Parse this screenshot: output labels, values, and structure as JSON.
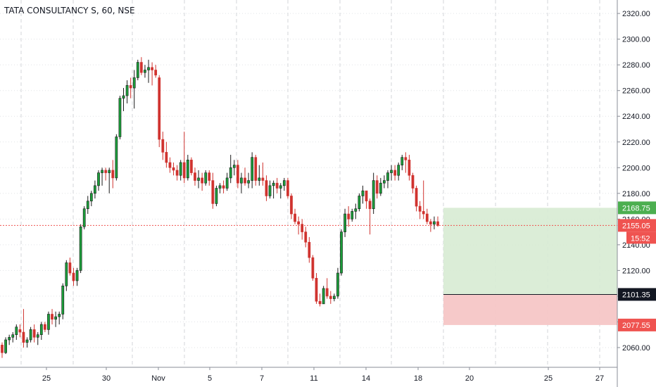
{
  "chart_data": {
    "type": "candlestick",
    "title": "TATA CONSULTANCY S, 60, NSE",
    "y_ticks": [
      2060,
      2080,
      2100,
      2120,
      2140,
      2160,
      2180,
      2200,
      2220,
      2240,
      2260,
      2280,
      2300,
      2320
    ],
    "x_ticks": [
      "25",
      "30",
      "Nov",
      "5",
      "7",
      "11",
      "14",
      "18",
      "20",
      "25",
      "27"
    ],
    "ylim": [
      2043,
      2325
    ],
    "grid": true,
    "candles": [
      [
        2062,
        2064,
        2052,
        2056
      ],
      [
        2056,
        2068,
        2055,
        2066
      ],
      [
        2066,
        2070,
        2062,
        2068
      ],
      [
        2068,
        2072,
        2064,
        2070
      ],
      [
        2070,
        2078,
        2066,
        2076
      ],
      [
        2074,
        2078,
        2068,
        2072
      ],
      [
        2072,
        2090,
        2060,
        2064
      ],
      [
        2064,
        2068,
        2060,
        2066
      ],
      [
        2066,
        2076,
        2064,
        2074
      ],
      [
        2074,
        2078,
        2064,
        2068
      ],
      [
        2068,
        2072,
        2062,
        2070
      ],
      [
        2070,
        2080,
        2066,
        2078
      ],
      [
        2078,
        2080,
        2072,
        2074
      ],
      [
        2074,
        2088,
        2070,
        2086
      ],
      [
        2086,
        2090,
        2078,
        2082
      ],
      [
        2082,
        2088,
        2076,
        2084
      ],
      [
        2084,
        2088,
        2078,
        2086
      ],
      [
        2086,
        2110,
        2082,
        2108
      ],
      [
        2108,
        2128,
        2104,
        2126
      ],
      [
        2126,
        2130,
        2116,
        2118
      ],
      [
        2118,
        2122,
        2108,
        2112
      ],
      [
        2112,
        2122,
        2108,
        2120
      ],
      [
        2120,
        2156,
        2118,
        2154
      ],
      [
        2154,
        2170,
        2152,
        2168
      ],
      [
        2168,
        2178,
        2164,
        2174
      ],
      [
        2174,
        2182,
        2170,
        2180
      ],
      [
        2180,
        2190,
        2176,
        2186
      ],
      [
        2186,
        2198,
        2182,
        2196
      ],
      [
        2196,
        2200,
        2186,
        2198
      ],
      [
        2198,
        2200,
        2190,
        2196
      ],
      [
        2196,
        2200,
        2180,
        2198
      ],
      [
        2198,
        2206,
        2184,
        2192
      ],
      [
        2192,
        2226,
        2190,
        2224
      ],
      [
        2224,
        2256,
        2222,
        2254
      ],
      [
        2254,
        2262,
        2244,
        2256
      ],
      [
        2256,
        2268,
        2250,
        2264
      ],
      [
        2264,
        2270,
        2254,
        2262
      ],
      [
        2262,
        2276,
        2246,
        2270
      ],
      [
        2270,
        2284,
        2268,
        2282
      ],
      [
        2282,
        2286,
        2272,
        2274
      ],
      [
        2274,
        2280,
        2270,
        2276
      ],
      [
        2276,
        2284,
        2266,
        2278
      ],
      [
        2278,
        2282,
        2264,
        2276
      ],
      [
        2276,
        2280,
        2270,
        2272
      ],
      [
        2270,
        2272,
        2216,
        2222
      ],
      [
        2222,
        2228,
        2206,
        2212
      ],
      [
        2212,
        2220,
        2200,
        2204
      ],
      [
        2204,
        2208,
        2196,
        2200
      ],
      [
        2200,
        2204,
        2194,
        2198
      ],
      [
        2198,
        2202,
        2190,
        2194
      ],
      [
        2194,
        2206,
        2190,
        2204
      ],
      [
        2204,
        2228,
        2188,
        2192
      ],
      [
        2192,
        2210,
        2190,
        2206
      ],
      [
        2206,
        2208,
        2194,
        2196
      ],
      [
        2196,
        2200,
        2186,
        2190
      ],
      [
        2190,
        2198,
        2184,
        2192
      ],
      [
        2192,
        2196,
        2182,
        2188
      ],
      [
        2188,
        2198,
        2186,
        2196
      ],
      [
        2196,
        2198,
        2186,
        2190
      ],
      [
        2190,
        2196,
        2168,
        2172
      ],
      [
        2172,
        2186,
        2170,
        2184
      ],
      [
        2184,
        2188,
        2180,
        2186
      ],
      [
        2186,
        2190,
        2180,
        2184
      ],
      [
        2184,
        2196,
        2182,
        2192
      ],
      [
        2192,
        2210,
        2188,
        2200
      ],
      [
        2200,
        2206,
        2194,
        2202
      ],
      [
        2202,
        2206,
        2184,
        2188
      ],
      [
        2188,
        2196,
        2180,
        2192
      ],
      [
        2192,
        2200,
        2186,
        2188
      ],
      [
        2188,
        2196,
        2184,
        2190
      ],
      [
        2190,
        2212,
        2184,
        2208
      ],
      [
        2208,
        2210,
        2186,
        2190
      ],
      [
        2190,
        2202,
        2186,
        2192
      ],
      [
        2192,
        2204,
        2186,
        2190
      ],
      [
        2190,
        2194,
        2174,
        2178
      ],
      [
        2178,
        2190,
        2176,
        2186
      ],
      [
        2186,
        2190,
        2176,
        2188
      ],
      [
        2188,
        2192,
        2180,
        2184
      ],
      [
        2184,
        2188,
        2176,
        2186
      ],
      [
        2186,
        2192,
        2182,
        2190
      ],
      [
        2190,
        2192,
        2176,
        2178
      ],
      [
        2178,
        2180,
        2160,
        2164
      ],
      [
        2164,
        2168,
        2156,
        2158
      ],
      [
        2158,
        2162,
        2148,
        2156
      ],
      [
        2156,
        2160,
        2144,
        2150
      ],
      [
        2150,
        2154,
        2138,
        2142
      ],
      [
        2142,
        2146,
        2126,
        2130
      ],
      [
        2130,
        2132,
        2112,
        2114
      ],
      [
        2114,
        2118,
        2094,
        2096
      ],
      [
        2096,
        2102,
        2092,
        2094
      ],
      [
        2094,
        2108,
        2094,
        2106
      ],
      [
        2106,
        2114,
        2098,
        2100
      ],
      [
        2100,
        2104,
        2094,
        2098
      ],
      [
        2098,
        2102,
        2096,
        2100
      ],
      [
        2100,
        2122,
        2098,
        2118
      ],
      [
        2118,
        2152,
        2116,
        2150
      ],
      [
        2150,
        2168,
        2146,
        2164
      ],
      [
        2164,
        2170,
        2154,
        2160
      ],
      [
        2160,
        2168,
        2158,
        2166
      ],
      [
        2166,
        2172,
        2160,
        2168
      ],
      [
        2168,
        2180,
        2166,
        2178
      ],
      [
        2178,
        2186,
        2172,
        2182
      ],
      [
        2182,
        2182,
        2168,
        2174
      ],
      [
        2174,
        2176,
        2148,
        2168
      ],
      [
        2168,
        2196,
        2164,
        2190
      ],
      [
        2190,
        2194,
        2176,
        2180
      ],
      [
        2180,
        2192,
        2178,
        2188
      ],
      [
        2188,
        2194,
        2184,
        2190
      ],
      [
        2190,
        2198,
        2184,
        2196
      ],
      [
        2196,
        2202,
        2190,
        2198
      ],
      [
        2198,
        2202,
        2190,
        2194
      ],
      [
        2194,
        2204,
        2190,
        2202
      ],
      [
        2202,
        2210,
        2198,
        2208
      ],
      [
        2208,
        2212,
        2196,
        2206
      ],
      [
        2206,
        2210,
        2190,
        2194
      ],
      [
        2194,
        2196,
        2180,
        2184
      ],
      [
        2184,
        2186,
        2166,
        2170
      ],
      [
        2170,
        2174,
        2160,
        2166
      ],
      [
        2166,
        2190,
        2160,
        2164
      ],
      [
        2164,
        2168,
        2156,
        2158
      ],
      [
        2158,
        2160,
        2150,
        2156
      ],
      [
        2156,
        2162,
        2152,
        2158
      ],
      [
        2158,
        2162,
        2154,
        2155
      ]
    ],
    "price_line": {
      "value": 2155.05,
      "label": "2155.05",
      "time_label": "15:52",
      "color": "#ef5350"
    },
    "position": {
      "target": {
        "value": 2168.75,
        "label": "2168.75",
        "color": "#4caf50"
      },
      "entry": {
        "value": 2101.35,
        "label": "2101.35",
        "color": "#131722"
      },
      "stop": {
        "value": 2077.55,
        "label": "2077.55",
        "color": "#ef5350"
      },
      "profit_fill": "#d7ebd3",
      "loss_fill": "#f6c6c6"
    },
    "colors": {
      "up": "#26a69a",
      "up_fill": "#1b9e3a",
      "down": "#d0332f",
      "grid": "#e1e3e6"
    }
  }
}
